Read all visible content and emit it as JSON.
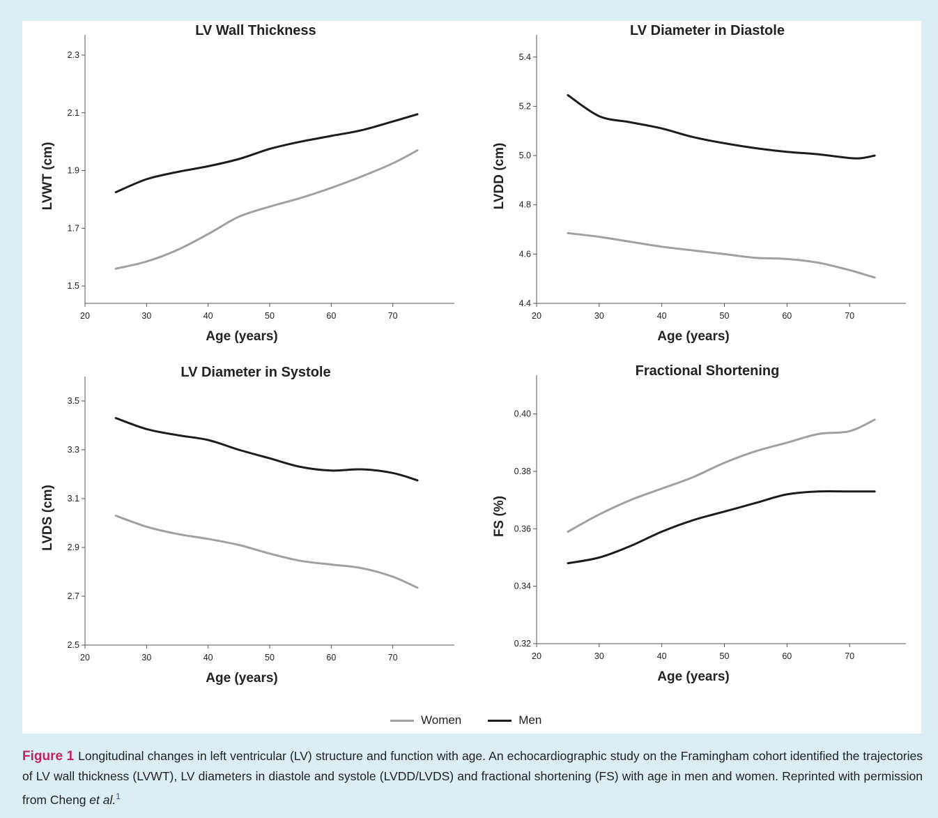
{
  "legend": {
    "women_label": "Women",
    "men_label": "Men",
    "women_color": "#a0a0a0",
    "men_color": "#1c1c1c"
  },
  "caption": {
    "label": "Figure 1",
    "text": "Longitudinal changes in left ventricular (LV) structure and function with age. An echocardiographic study on the Framingham cohort identified the trajectories of LV wall thickness (LVWT), LV diameters in diastole and systole (LVDD/LVDS) and fractional shortening (FS) with age in men and women. Reprinted with permission from Cheng ",
    "italic": "et al.",
    "sup": "1"
  },
  "chart_data": [
    {
      "type": "line",
      "title": "LV Wall Thickness",
      "xlabel": "Age (years)",
      "ylabel": "LVWT (cm)",
      "xlim": [
        20,
        80
      ],
      "ylim": [
        1.44,
        2.37
      ],
      "xticks": [
        20,
        30,
        40,
        50,
        60,
        70
      ],
      "yticks": [
        1.5,
        1.7,
        1.9,
        2.1,
        2.3
      ],
      "ydec": 1,
      "x": [
        25,
        30,
        35,
        40,
        45,
        50,
        55,
        60,
        65,
        70,
        74
      ],
      "series": [
        {
          "name": "Women",
          "values": [
            1.56,
            1.585,
            1.625,
            1.68,
            1.74,
            1.775,
            1.805,
            1.84,
            1.88,
            1.925,
            1.97
          ]
        },
        {
          "name": "Men",
          "values": [
            1.825,
            1.87,
            1.895,
            1.915,
            1.94,
            1.975,
            2.0,
            2.02,
            2.04,
            2.07,
            2.095
          ]
        }
      ]
    },
    {
      "type": "line",
      "title": "LV Diameter in Diastole",
      "xlabel": "Age (years)",
      "ylabel": "LVDD (cm)",
      "xlim": [
        20,
        79
      ],
      "ylim": [
        4.4,
        5.49
      ],
      "xticks": [
        20,
        30,
        40,
        50,
        60,
        70
      ],
      "yticks": [
        4.4,
        4.6,
        4.8,
        5.0,
        5.2,
        5.4
      ],
      "ydec": 1,
      "x": [
        25,
        30,
        35,
        40,
        45,
        50,
        55,
        60,
        65,
        70,
        72,
        74
      ],
      "series": [
        {
          "name": "Women",
          "values": [
            4.685,
            4.67,
            4.65,
            4.63,
            4.615,
            4.6,
            4.585,
            4.58,
            4.565,
            4.535,
            4.52,
            4.505
          ]
        },
        {
          "name": "Men",
          "values": [
            5.245,
            5.16,
            5.135,
            5.11,
            5.075,
            5.05,
            5.03,
            5.015,
            5.005,
            4.99,
            4.99,
            5.0
          ]
        }
      ]
    },
    {
      "type": "line",
      "title": "LV Diameter in Systole",
      "xlabel": "Age (years)",
      "ylabel": "LVDS (cm)",
      "xlim": [
        20,
        80
      ],
      "ylim": [
        2.5,
        3.6
      ],
      "xticks": [
        20,
        30,
        40,
        50,
        60,
        70
      ],
      "yticks": [
        2.5,
        2.7,
        2.9,
        3.1,
        3.3,
        3.5
      ],
      "ydec": 1,
      "x": [
        25,
        30,
        35,
        40,
        45,
        50,
        55,
        60,
        65,
        70,
        74
      ],
      "series": [
        {
          "name": "Women",
          "values": [
            3.03,
            2.985,
            2.955,
            2.935,
            2.91,
            2.875,
            2.845,
            2.83,
            2.815,
            2.78,
            2.735
          ]
        },
        {
          "name": "Men",
          "values": [
            3.43,
            3.385,
            3.36,
            3.34,
            3.3,
            3.265,
            3.23,
            3.215,
            3.22,
            3.205,
            3.175
          ]
        }
      ]
    },
    {
      "type": "line",
      "title": "Fractional Shortening",
      "xlabel": "Age (years)",
      "ylabel": "FS (%)",
      "xlim": [
        20,
        79
      ],
      "ylim": [
        0.32,
        0.4135
      ],
      "xticks": [
        20,
        30,
        40,
        50,
        60,
        70
      ],
      "yticks": [
        0.32,
        0.34,
        0.36,
        0.38,
        0.4
      ],
      "ydec": 2,
      "x": [
        25,
        30,
        35,
        40,
        45,
        50,
        55,
        60,
        65,
        70,
        74
      ],
      "series": [
        {
          "name": "Women",
          "values": [
            0.359,
            0.365,
            0.37,
            0.374,
            0.378,
            0.383,
            0.387,
            0.39,
            0.393,
            0.394,
            0.398
          ]
        },
        {
          "name": "Men",
          "values": [
            0.348,
            0.35,
            0.354,
            0.359,
            0.363,
            0.366,
            0.369,
            0.372,
            0.373,
            0.373,
            0.373
          ]
        }
      ]
    }
  ]
}
